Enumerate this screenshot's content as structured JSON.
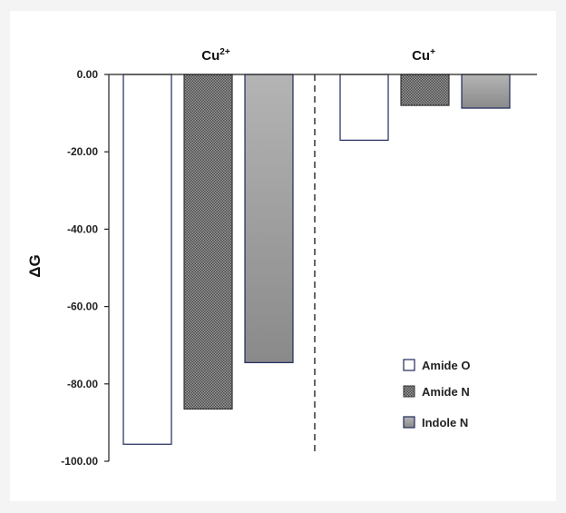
{
  "chart_data": {
    "type": "bar",
    "ylabel": "ΔG",
    "ylim": [
      -100,
      0
    ],
    "yticks": [
      0,
      -20,
      -40,
      -60,
      -80,
      -100
    ],
    "ytick_labels": [
      "0.00",
      "-20.00",
      "-40.00",
      "-60.00",
      "-80.00",
      "-100.00"
    ],
    "groups": [
      {
        "label_base": "Cu",
        "label_sup": "2+"
      },
      {
        "label_base": "Cu",
        "label_sup": "+"
      }
    ],
    "series": [
      {
        "name": "Amide O",
        "fill": "white",
        "values": [
          -95.6,
          -17.0
        ]
      },
      {
        "name": "Amide N",
        "fill": "checker",
        "values": [
          -86.5,
          -8.0
        ]
      },
      {
        "name": "Indole N",
        "fill": "gradient",
        "values": [
          -74.5,
          -8.7
        ]
      }
    ],
    "legend_position": "bottom-right",
    "grid": false,
    "group_separator": "dashed"
  }
}
